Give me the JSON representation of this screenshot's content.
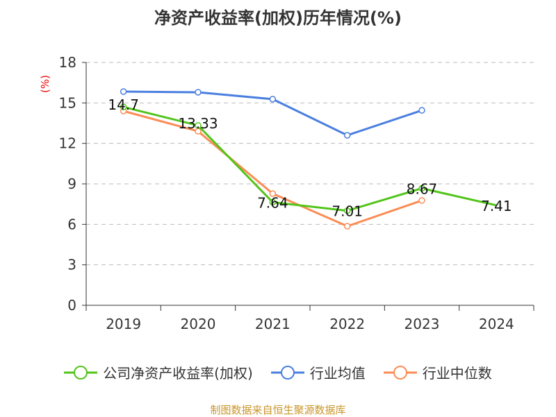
{
  "chart_data": {
    "type": "line",
    "title": "净资产收益率(加权)历年情况(%)",
    "ylabel": "(%)",
    "ylim": [
      0,
      18
    ],
    "yticks": [
      0,
      3,
      6,
      9,
      12,
      15,
      18
    ],
    "categories": [
      "2019",
      "2020",
      "2021",
      "2022",
      "2023",
      "2024"
    ],
    "grid": true,
    "legend_position": "bottom",
    "series": [
      {
        "name": "公司净资产收益率(加权)",
        "color": "#52c41a",
        "values": [
          14.7,
          13.33,
          7.64,
          7.01,
          8.67,
          7.41
        ],
        "labels": [
          "14.7",
          "13.33",
          "7.64",
          "7.01",
          "8.67",
          "7.41"
        ]
      },
      {
        "name": "行业均值",
        "color": "#4a7fe0",
        "values": [
          15.84,
          15.79,
          15.28,
          12.6,
          14.45,
          null
        ]
      },
      {
        "name": "行业中位数",
        "color": "#fb8c55",
        "values": [
          14.4,
          12.9,
          8.28,
          5.86,
          7.77,
          null
        ]
      }
    ]
  },
  "footer": "制图数据来自恒生聚源数据库"
}
